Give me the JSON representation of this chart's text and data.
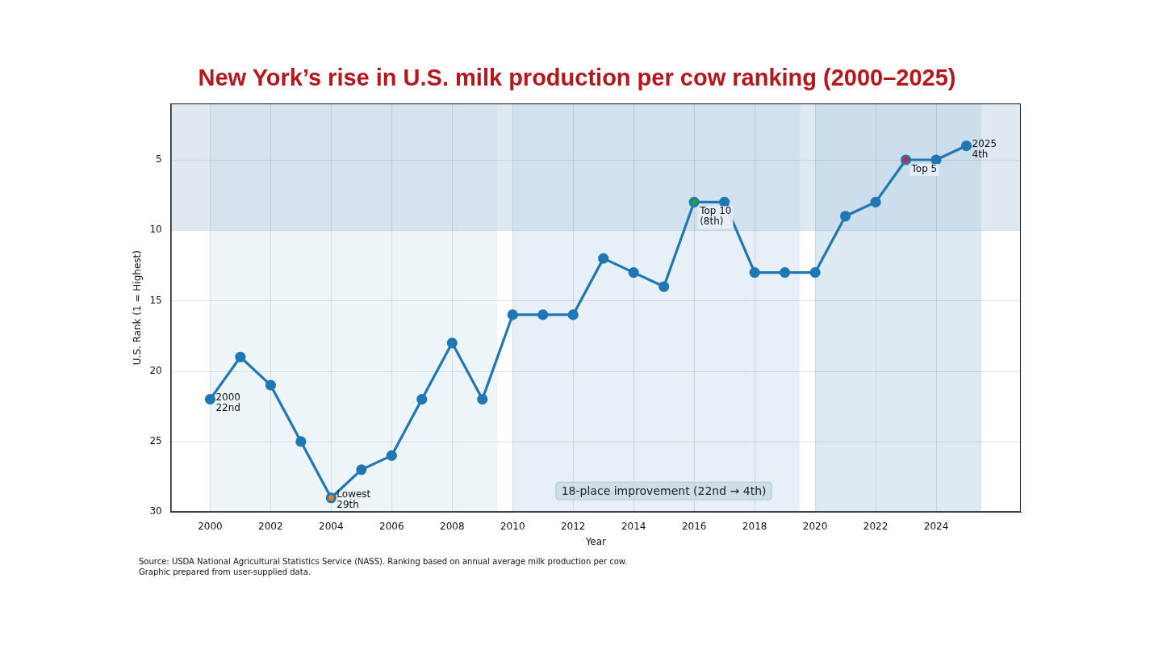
{
  "chart_data": {
    "type": "line",
    "title": "New York’s rise in U.S. milk production per cow ranking (2000–2025)",
    "xlabel": "Year",
    "ylabel": "U.S. Rank (1 = Highest)",
    "series": [
      {
        "type": "line",
        "color": "#1f77b4",
        "x": [
          2000,
          2001,
          2002,
          2003,
          2004,
          2005,
          2006,
          2007,
          2008,
          2009,
          2010,
          2011,
          2012,
          2013,
          2014,
          2015,
          2016,
          2017,
          2018,
          2019,
          2020,
          2021,
          2022,
          2023,
          2024,
          2025
        ],
        "values": [
          22,
          19,
          21,
          25,
          29,
          27,
          26,
          22,
          18,
          22,
          16,
          16,
          16,
          12,
          13,
          14,
          8,
          8,
          13,
          13,
          13,
          9,
          8,
          5,
          5,
          4
        ]
      },
      {
        "type": "scatter",
        "x": [
          2004,
          2016,
          2023
        ],
        "values": [
          29,
          8,
          5
        ],
        "colors": [
          "#ff7f0e",
          "#2ca02c",
          "#d62728"
        ]
      }
    ],
    "xlim": [
      1998.7,
      2026.8
    ],
    "xticks": [
      2000,
      2002,
      2004,
      2006,
      2008,
      2010,
      2012,
      2014,
      2016,
      2018,
      2020,
      2022,
      2024
    ],
    "ylim": [
      30,
      1
    ],
    "yticks": [
      5,
      10,
      15,
      20,
      25,
      30
    ],
    "grid": true,
    "legend": false,
    "marker": "circle",
    "line_style": "solid",
    "bands": [
      {
        "axis": "x",
        "from": 2000,
        "to": 2009.5,
        "color": "#eef5f9"
      },
      {
        "axis": "x",
        "from": 2010,
        "to": 2019.5,
        "color": "#e7f0f7"
      },
      {
        "axis": "x",
        "from": 2020,
        "to": 2025.5,
        "color": "#dde9f3"
      },
      {
        "axis": "y",
        "from": 1,
        "to": 10,
        "color": "#b7cfe2"
      }
    ],
    "annotations": [
      {
        "text": "2000\n22nd",
        "x": 2000,
        "y": 22
      },
      {
        "text": "Lowest\n29th",
        "x": 2004,
        "y": 29
      },
      {
        "text": "Top 10\n(8th)",
        "x": 2016,
        "y": 8
      },
      {
        "text": "Top 5",
        "x": 2023,
        "y": 5
      },
      {
        "text": "2025\n4th",
        "x": 2025,
        "y": 4
      },
      "18-place improvement (22nd → 4th)",
      "Source: USDA National Agricultural Statistics Service (NASS). Ranking based on annual average milk production per cow.\nGraphic prepared from user-supplied data."
    ]
  }
}
